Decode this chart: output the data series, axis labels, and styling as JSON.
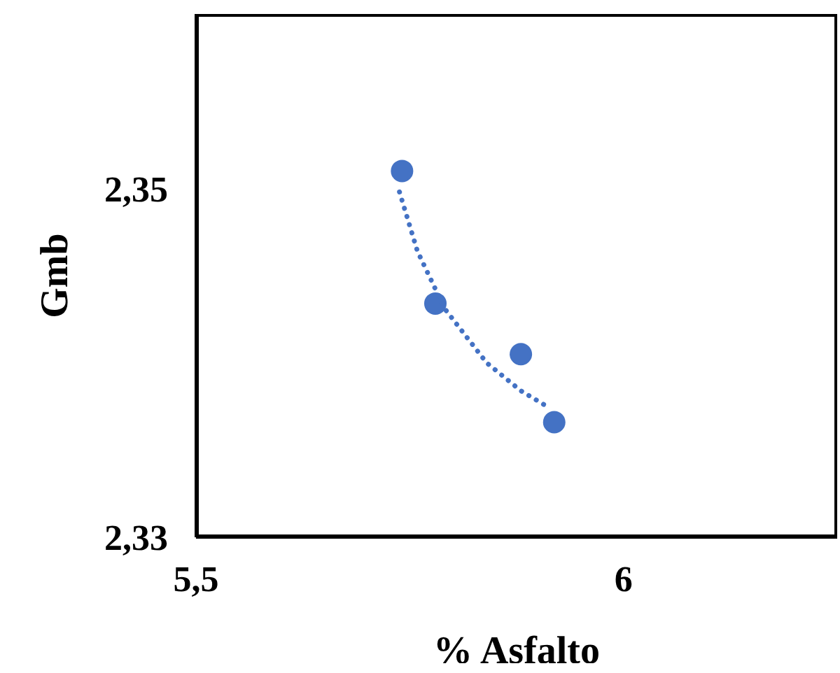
{
  "chart_data": {
    "type": "scatter",
    "xlabel": "% Asfalto",
    "ylabel": "Gmb",
    "xlim": [
      5.5,
      6.25
    ],
    "xticks": [
      {
        "value": 5.5,
        "label": "5,5"
      },
      6
    ],
    "ylim": [
      2.33,
      2.36
    ],
    "yticks": [
      {
        "value": 2.33,
        "label": "2,33"
      },
      {
        "value": 2.35,
        "label": "2,35"
      }
    ],
    "grid": false,
    "legend": false,
    "series": [
      {
        "type": "scatter",
        "color": "#4472c4",
        "marker": "circle",
        "x": [
          5.741,
          5.78,
          5.88,
          5.919
        ],
        "values": [
          2.351,
          2.3434,
          2.3405,
          2.3366
        ]
      },
      {
        "type": "line",
        "color": "#4472c4",
        "marker": "none",
        "line_style": "dotted",
        "x": [
          5.738,
          5.759,
          5.791,
          5.84,
          5.88,
          5.914
        ],
        "values": [
          2.3498,
          2.3464,
          2.3431,
          2.34,
          2.3384,
          2.3374
        ]
      }
    ]
  }
}
